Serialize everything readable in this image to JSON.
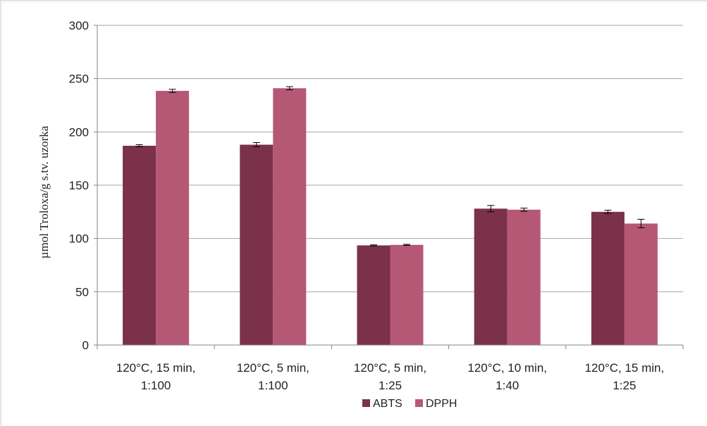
{
  "chart_data": {
    "type": "bar",
    "title": "",
    "xlabel": "",
    "ylabel": "µmol Troloxa/g s.tv. uzorka",
    "ylim": [
      0,
      300
    ],
    "yticks": [
      0,
      50,
      100,
      150,
      200,
      250,
      300
    ],
    "grid": true,
    "legend_position": "bottom",
    "categories": [
      [
        "120°C, 15 min,",
        "1:100"
      ],
      [
        "120°C, 5 min,",
        "1:100"
      ],
      [
        "120°C, 5 min,",
        "1:25"
      ],
      [
        "120°C, 10 min,",
        "1:40"
      ],
      [
        "120°C, 15 min,",
        "1:25"
      ]
    ],
    "series": [
      {
        "name": "ABTS",
        "color": "#7b3149",
        "values": [
          187,
          188,
          93.5,
          128,
          125
        ],
        "errors": [
          1,
          2,
          0.5,
          3,
          1.5
        ]
      },
      {
        "name": "DPPH",
        "color": "#b55876",
        "values": [
          238.5,
          241,
          94,
          127,
          114
        ],
        "errors": [
          1.5,
          1.5,
          0.5,
          1.5,
          4
        ]
      }
    ]
  }
}
